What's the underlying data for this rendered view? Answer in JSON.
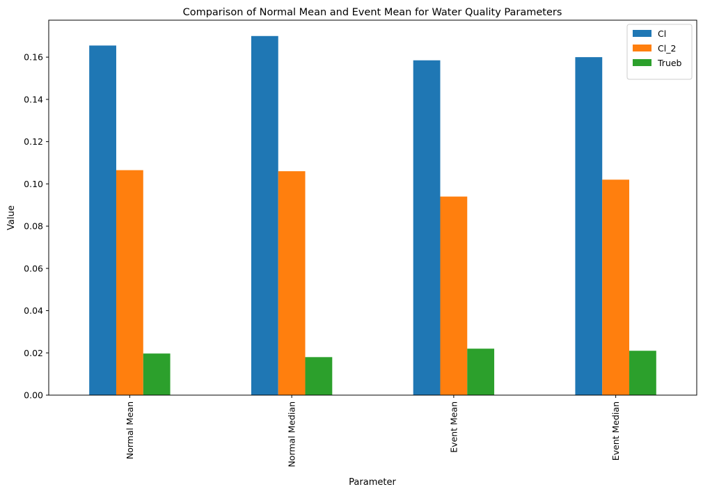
{
  "chart_data": {
    "type": "bar",
    "title": "Comparison of Normal Mean and Event Mean for Water Quality Parameters",
    "xlabel": "Parameter",
    "ylabel": "Value",
    "categories": [
      "Normal Mean",
      "Normal Median",
      "Event Mean",
      "Event Median"
    ],
    "series": [
      {
        "name": "Cl",
        "color": "#1f77b4",
        "values": [
          0.1655,
          0.17,
          0.1585,
          0.16
        ]
      },
      {
        "name": "Cl_2",
        "color": "#ff7f0e",
        "values": [
          0.1065,
          0.106,
          0.094,
          0.102
        ]
      },
      {
        "name": "Trueb",
        "color": "#2ca02c",
        "values": [
          0.0197,
          0.018,
          0.022,
          0.021
        ]
      }
    ],
    "ylim": [
      0,
      0.1775
    ],
    "yticks": [
      "0.00",
      "0.02",
      "0.04",
      "0.06",
      "0.08",
      "0.10",
      "0.12",
      "0.14",
      "0.16"
    ],
    "legend_position": "top-right",
    "grid": false
  }
}
